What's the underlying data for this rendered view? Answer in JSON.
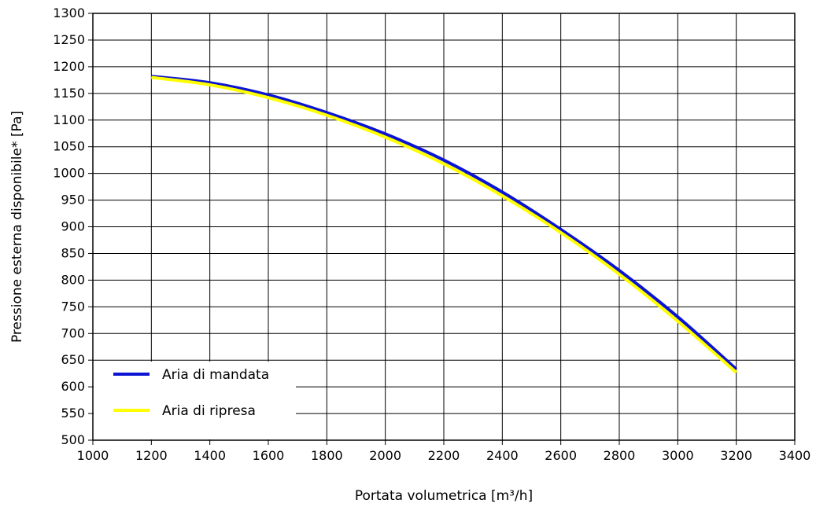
{
  "chart_data": {
    "type": "line",
    "title": "",
    "xlabel": "Portata volumetrica [m³/h]",
    "ylabel": "Pressione esterna disponibile* [Pa]",
    "xlim": [
      1000,
      3400
    ],
    "ylim": [
      500,
      1300
    ],
    "x_ticks": [
      1000,
      1200,
      1400,
      1600,
      1800,
      2000,
      2200,
      2400,
      2600,
      2800,
      3000,
      3200,
      3400
    ],
    "y_ticks": [
      500,
      550,
      600,
      650,
      700,
      750,
      800,
      850,
      900,
      950,
      1000,
      1050,
      1100,
      1150,
      1200,
      1250,
      1300
    ],
    "grid": true,
    "legend_position": "bottom-left",
    "series": [
      {
        "name": "Aria di mandata",
        "color": "#0a14d2",
        "x": [
          1200,
          1400,
          1600,
          1800,
          2000,
          2200,
          2400,
          2600,
          2800,
          3000,
          3200
        ],
        "y": [
          1182,
          1170,
          1147,
          1114,
          1074,
          1025,
          965,
          895,
          818,
          731,
          633
        ]
      },
      {
        "name": "Aria di ripresa",
        "color": "#ffff00",
        "x": [
          1200,
          1400,
          1600,
          1800,
          2000,
          2200,
          2400,
          2600,
          2800,
          3000,
          3200
        ],
        "y": [
          1180,
          1166,
          1142,
          1109,
          1068,
          1018,
          958,
          889,
          811,
          723,
          627
        ]
      }
    ]
  }
}
